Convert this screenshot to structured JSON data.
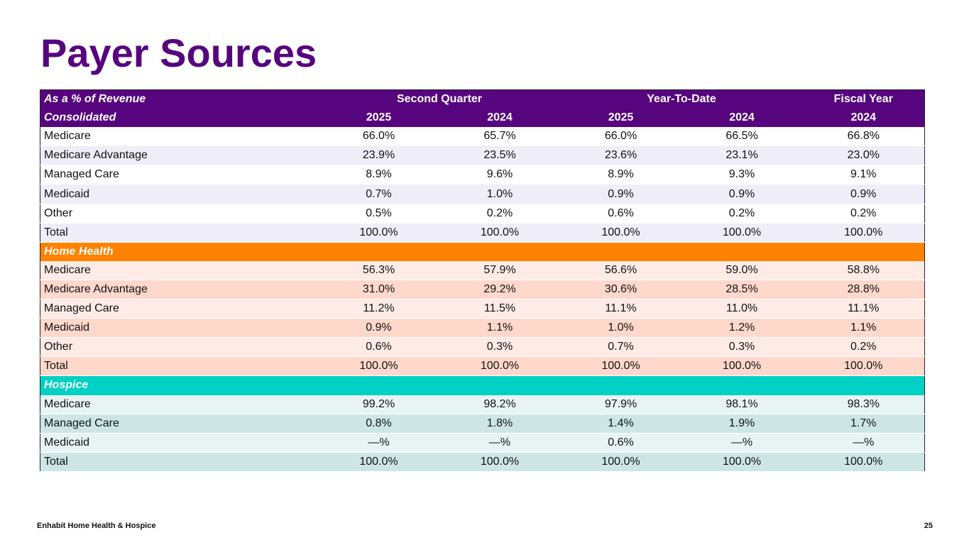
{
  "title": "Payer Sources",
  "colors": {
    "title": "#57057f",
    "header": "#57057f",
    "home_health": "#ff8200",
    "hospice": "#00d1c4"
  },
  "header": {
    "label": "As a % of Revenue",
    "group1": "Second Quarter",
    "group2": "Year-To-Date",
    "group3": "Fiscal Year"
  },
  "sections": [
    {
      "name": "Consolidated",
      "years": [
        "2025",
        "2024",
        "2025",
        "2024",
        "2024"
      ],
      "rows": [
        {
          "label": "Medicare",
          "values": [
            "66.0%",
            "65.7%",
            "66.0%",
            "66.5%",
            "66.8%"
          ]
        },
        {
          "label": "Medicare Advantage",
          "values": [
            "23.9%",
            "23.5%",
            "23.6%",
            "23.1%",
            "23.0%"
          ]
        },
        {
          "label": "Managed Care",
          "values": [
            "8.9%",
            "9.6%",
            "8.9%",
            "9.3%",
            "9.1%"
          ]
        },
        {
          "label": "Medicaid",
          "values": [
            "0.7%",
            "1.0%",
            "0.9%",
            "0.9%",
            "0.9%"
          ]
        },
        {
          "label": "Other",
          "values": [
            "0.5%",
            "0.2%",
            "0.6%",
            "0.2%",
            "0.2%"
          ]
        },
        {
          "label": "Total",
          "values": [
            "100.0%",
            "100.0%",
            "100.0%",
            "100.0%",
            "100.0%"
          ]
        }
      ]
    },
    {
      "name": "Home Health",
      "rows": [
        {
          "label": "Medicare",
          "values": [
            "56.3%",
            "57.9%",
            "56.6%",
            "59.0%",
            "58.8%"
          ]
        },
        {
          "label": "Medicare Advantage",
          "values": [
            "31.0%",
            "29.2%",
            "30.6%",
            "28.5%",
            "28.8%"
          ]
        },
        {
          "label": "Managed Care",
          "values": [
            "11.2%",
            "11.5%",
            "11.1%",
            "11.0%",
            "11.1%"
          ]
        },
        {
          "label": "Medicaid",
          "values": [
            "0.9%",
            "1.1%",
            "1.0%",
            "1.2%",
            "1.1%"
          ]
        },
        {
          "label": "Other",
          "values": [
            "0.6%",
            "0.3%",
            "0.7%",
            "0.3%",
            "0.2%"
          ]
        },
        {
          "label": "Total",
          "values": [
            "100.0%",
            "100.0%",
            "100.0%",
            "100.0%",
            "100.0%"
          ]
        }
      ]
    },
    {
      "name": "Hospice",
      "rows": [
        {
          "label": "Medicare",
          "values": [
            "99.2%",
            "98.2%",
            "97.9%",
            "98.1%",
            "98.3%"
          ]
        },
        {
          "label": "Managed Care",
          "values": [
            "0.8%",
            "1.8%",
            "1.4%",
            "1.9%",
            "1.7%"
          ]
        },
        {
          "label": "Medicaid",
          "values": [
            "—%",
            "—%",
            "0.6%",
            "—%",
            "—%"
          ]
        },
        {
          "label": "Total",
          "values": [
            "100.0%",
            "100.0%",
            "100.0%",
            "100.0%",
            "100.0%"
          ]
        }
      ]
    }
  ],
  "footer": {
    "company": "Enhabit Home Health & Hospice",
    "page_number": "25"
  }
}
